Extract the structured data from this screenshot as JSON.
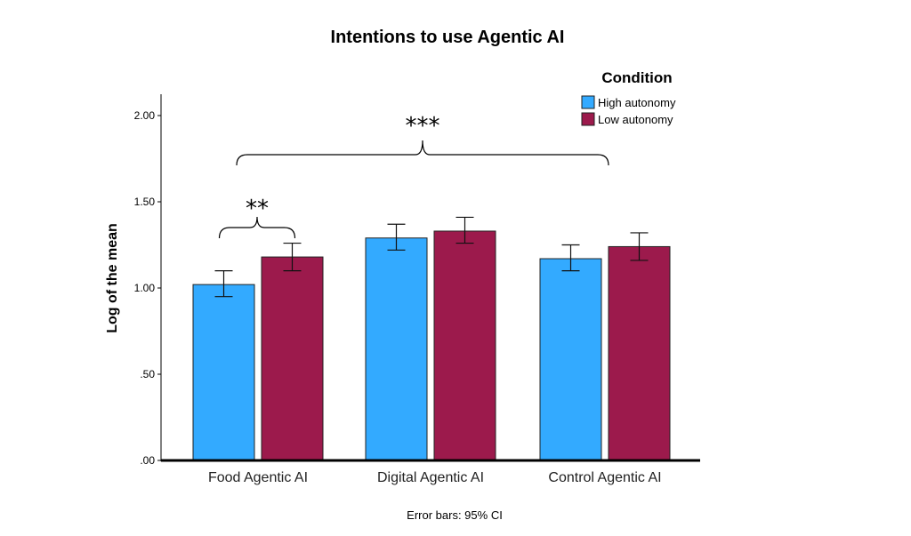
{
  "chart_data": {
    "type": "bar",
    "title": "Intentions to use Agentic AI",
    "ylabel": "Log of the mean",
    "xlabel": "",
    "categories": [
      "Food Agentic AI",
      "Digital Agentic AI",
      "Control Agentic AI"
    ],
    "legend": {
      "title": "Condition",
      "placement": "top-right"
    },
    "series": [
      {
        "name": "High autonomy",
        "color": "#33aaff",
        "values": [
          1.02,
          1.29,
          1.17
        ],
        "ci_low": [
          0.95,
          1.22,
          1.1
        ],
        "ci_high": [
          1.1,
          1.37,
          1.25
        ]
      },
      {
        "name": "Low autonomy",
        "color": "#9c1a4c",
        "values": [
          1.18,
          1.33,
          1.24
        ],
        "ci_low": [
          1.1,
          1.26,
          1.16
        ],
        "ci_high": [
          1.26,
          1.41,
          1.32
        ]
      }
    ],
    "ylim": [
      0,
      2.0
    ],
    "yticks": [
      0,
      0.5,
      1.0,
      1.5,
      2.0
    ],
    "ytick_labels": [
      ".00",
      ".50",
      "1.00",
      "1.50",
      "2.00"
    ],
    "grid": false,
    "annotations": [
      {
        "text": "**",
        "span": "Food Agentic AI"
      },
      {
        "text": "***",
        "span": "all categories"
      }
    ],
    "footnote": "Error bars: 95% CI"
  }
}
